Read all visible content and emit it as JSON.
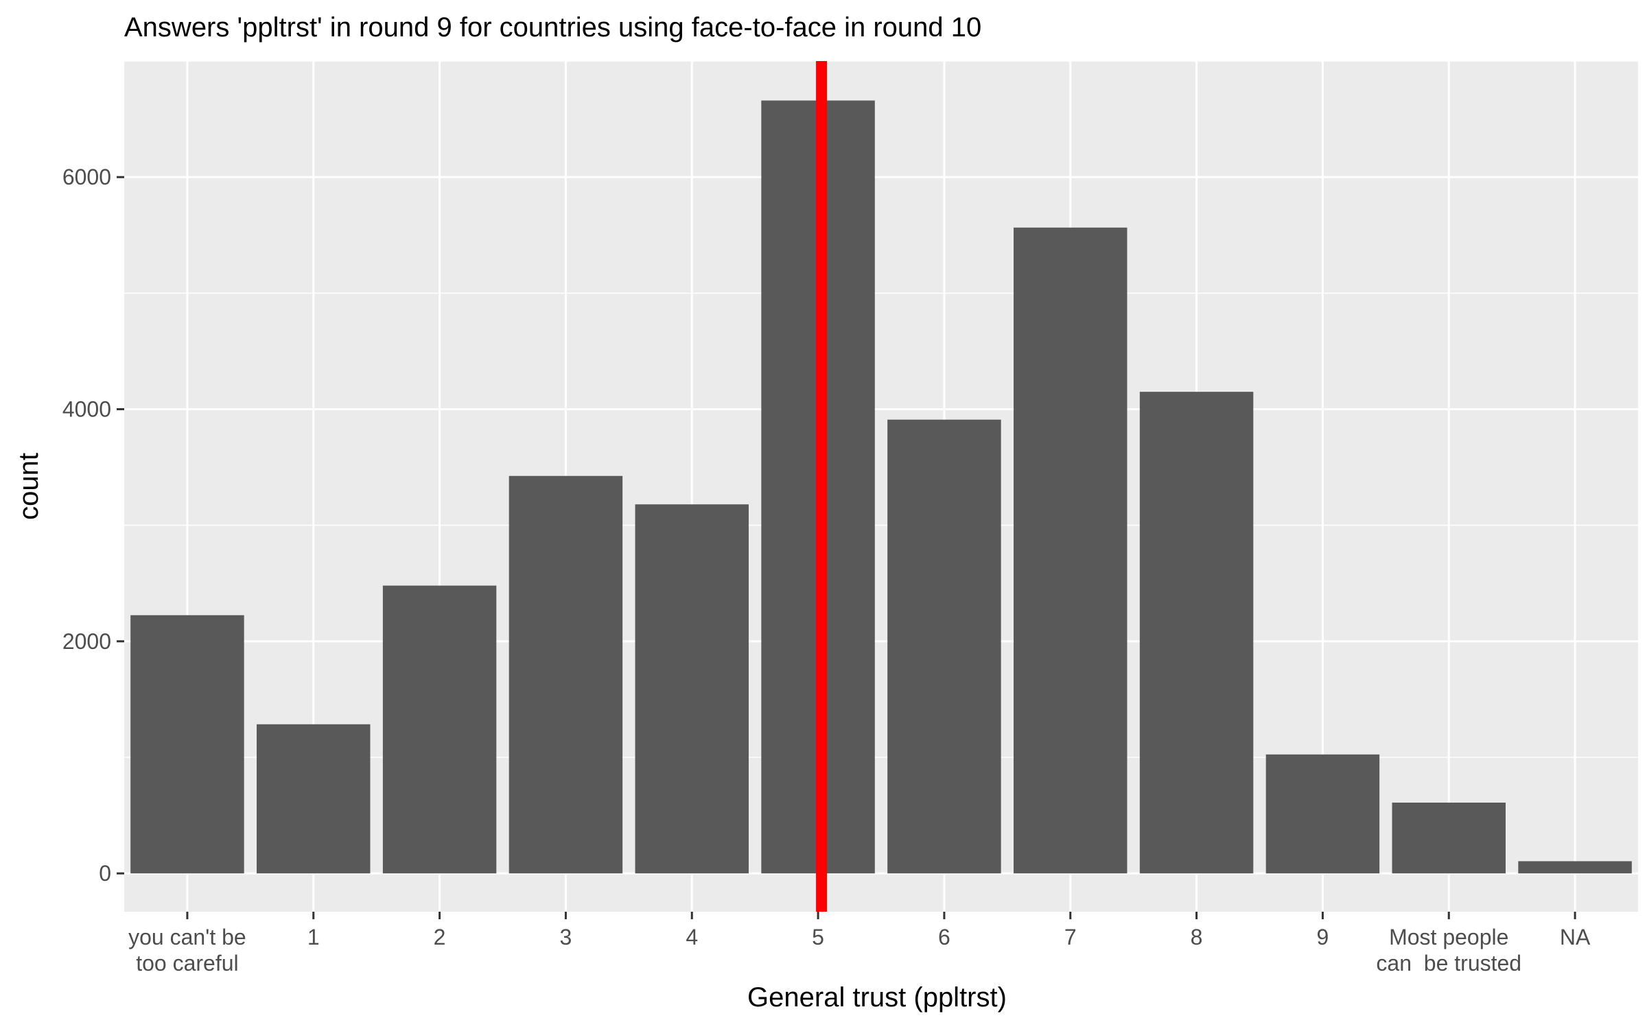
{
  "chart_data": {
    "type": "bar",
    "title": "Answers 'ppltrst' in round 9 for countries using face-to-face in round 10",
    "xlabel": "General trust (ppltrst)",
    "ylabel": "count",
    "categories": [
      [
        "you can't be",
        "too careful"
      ],
      [
        "1"
      ],
      [
        "2"
      ],
      [
        "3"
      ],
      [
        "4"
      ],
      [
        "5"
      ],
      [
        "6"
      ],
      [
        "7"
      ],
      [
        "8"
      ],
      [
        "9"
      ],
      [
        "Most people",
        "can  be trusted"
      ],
      [
        "NA"
      ]
    ],
    "values": [
      2225,
      1285,
      2480,
      3425,
      3180,
      6660,
      3910,
      5565,
      4150,
      1025,
      610,
      105
    ],
    "ylim": [
      -330,
      7000
    ],
    "yticks": [
      0,
      2000,
      4000,
      6000
    ],
    "grid": true,
    "reference_line": {
      "at_category": "5",
      "color": "#ff0000"
    },
    "colors": {
      "bar": "#595959",
      "panel": "#ebebeb",
      "grid": "#ffffff",
      "reference_line": "#ff0000"
    }
  }
}
